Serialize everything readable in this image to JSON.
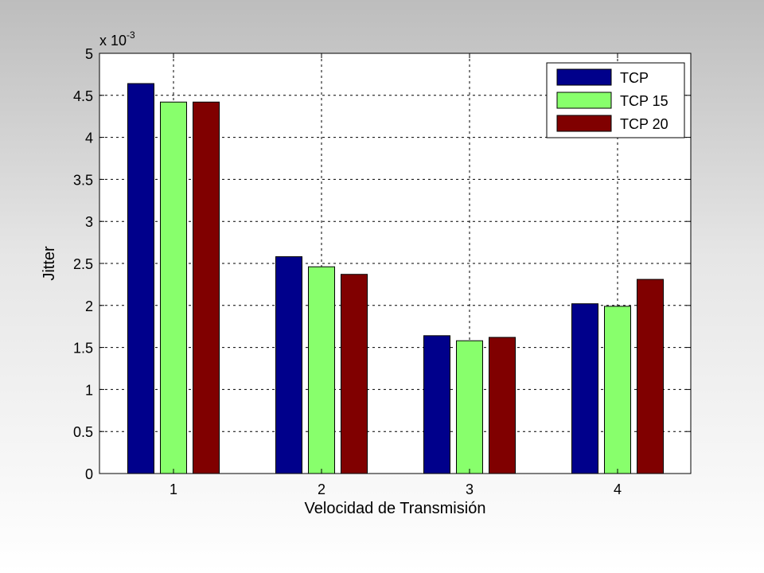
{
  "chart_data": {
    "type": "bar",
    "title": "",
    "xlabel": "Velocidad de Transmisión",
    "ylabel": "Jitter",
    "exponent_base": "x 10",
    "exponent_power": "-3",
    "categories": [
      "1",
      "2",
      "3",
      "4"
    ],
    "ylim": [
      0,
      5
    ],
    "yticks": [
      "0",
      "0.5",
      "1",
      "1.5",
      "2",
      "2.5",
      "3",
      "3.5",
      "4",
      "4.5",
      "5"
    ],
    "grid": true,
    "legend_position": "top-right",
    "series": [
      {
        "name": "TCP",
        "color": "#00008b",
        "values": [
          4.64,
          2.58,
          1.64,
          2.02
        ]
      },
      {
        "name": "TCP 15",
        "color": "#88ff6c",
        "values": [
          4.42,
          2.46,
          1.58,
          1.99
        ]
      },
      {
        "name": "TCP 20",
        "color": "#800000",
        "values": [
          4.42,
          2.37,
          1.62,
          2.31
        ]
      }
    ]
  }
}
